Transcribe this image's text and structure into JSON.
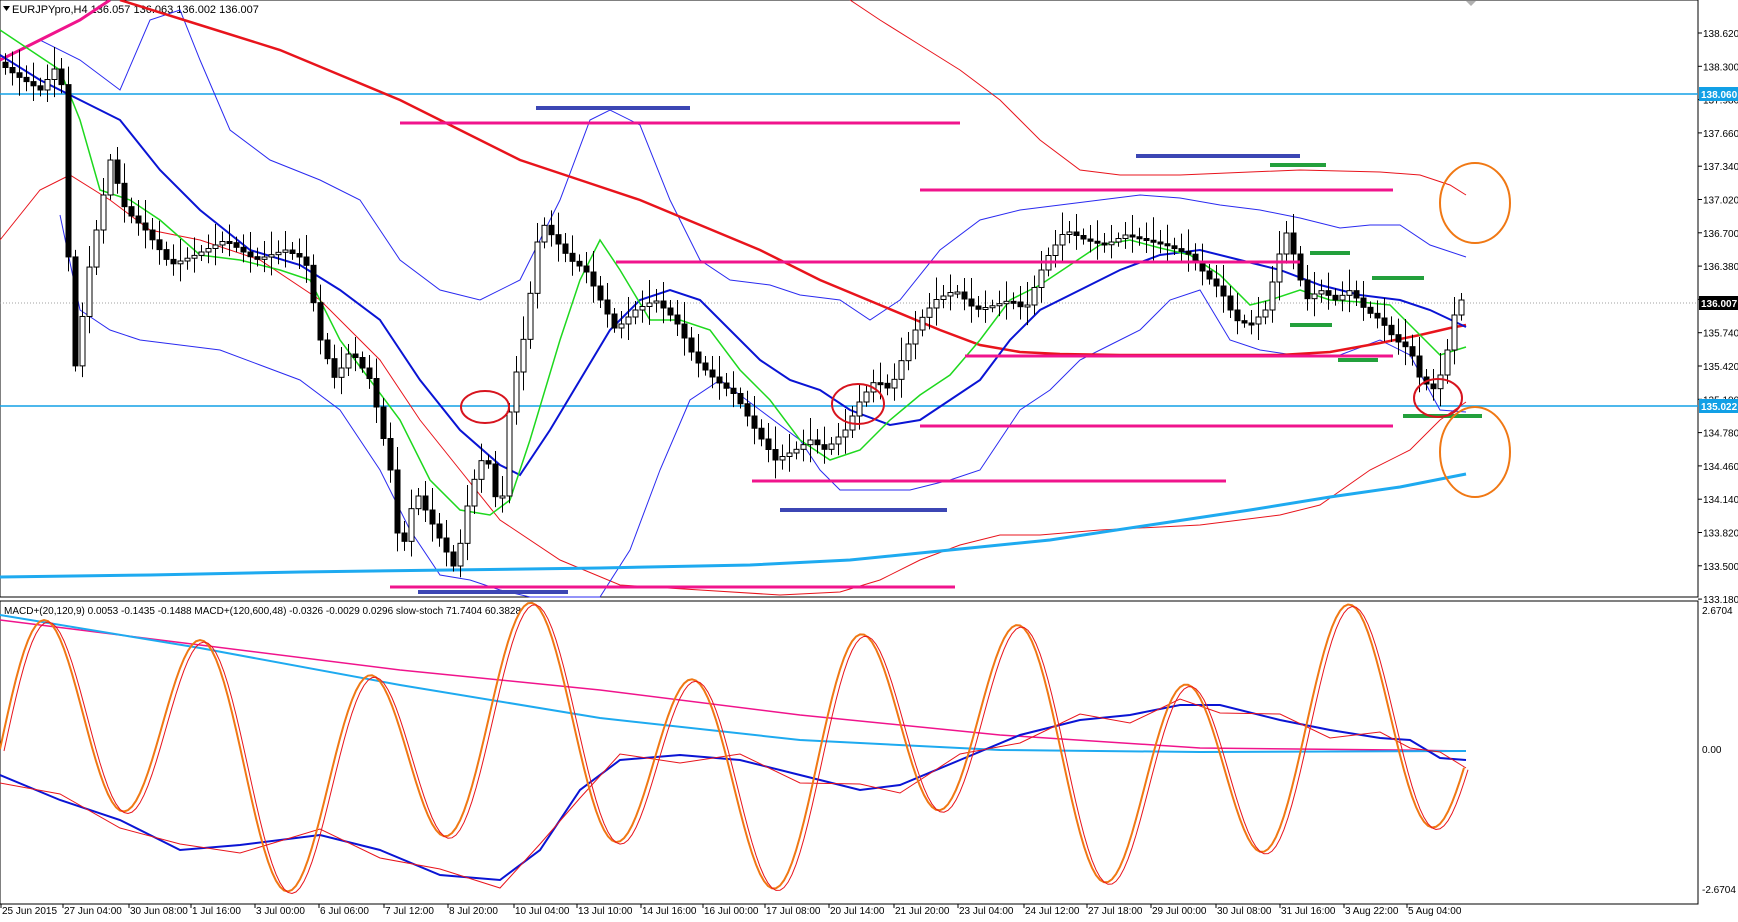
{
  "window": {
    "symbol_header": "EURJPYpro,H4  136.057 136.063 136.002 136.007",
    "menu_arrow_icon": "triangle-down-icon"
  },
  "main_chart": {
    "price_labels": [
      "138.620",
      "138.300",
      "137.980",
      "137.660",
      "137.340",
      "137.020",
      "136.700",
      "136.380",
      "136.060",
      "135.740",
      "135.420",
      "135.100",
      "134.780",
      "134.460",
      "134.140",
      "133.820",
      "133.500",
      "133.180"
    ],
    "current_price": "136.007",
    "hline_top_label": "138.060",
    "hline_bottom_label": "135.022",
    "colors": {
      "bull_candle": "#ffffff",
      "bear_candle": "#000000",
      "ma_red": "#e8141c",
      "ma_blue": "#0a14d4",
      "ma_green": "#1ed81e",
      "ma_cyan": "#1eaaf0",
      "bands_blue": "#2a2af0",
      "bands_red": "#e8141c",
      "level_magenta": "#f0148c",
      "level_navy": "#3c46b4",
      "level_green": "#23a03c",
      "hline_cyan": "#12a0e6",
      "circle_red": "#d7141e",
      "circle_orange": "#f07814"
    }
  },
  "indicator_panel": {
    "title": "MACD+(20,120,9) 0.0053 -0.1435 -0.1488  MACD+(120,600,48) -0.0326 -0.0029 0.0296  slow-stoch 71.7404 60.3828",
    "scale_top": "2.6704",
    "scale_mid": "0.00",
    "scale_bottom": "-2.6704"
  },
  "time_axis": {
    "labels": [
      "25 Jun 2015",
      "27 Jun 04:00",
      "30 Jun 08:00",
      "1 Jul 16:00",
      "3 Jul 00:00",
      "6 Jul 06:00",
      "7 Jul 12:00",
      "8 Jul 20:00",
      "10 Jul 04:00",
      "13 Jul 10:00",
      "14 Jul 16:00",
      "16 Jul 00:00",
      "17 Jul 08:00",
      "20 Jul 14:00",
      "21 Jul 20:00",
      "23 Jul 04:00",
      "24 Jul 12:00",
      "27 Jul 18:00",
      "29 Jul 00:00",
      "30 Jul 08:00",
      "31 Jul 16:00",
      "3 Aug 22:00",
      "5 Aug 04:00"
    ]
  }
}
